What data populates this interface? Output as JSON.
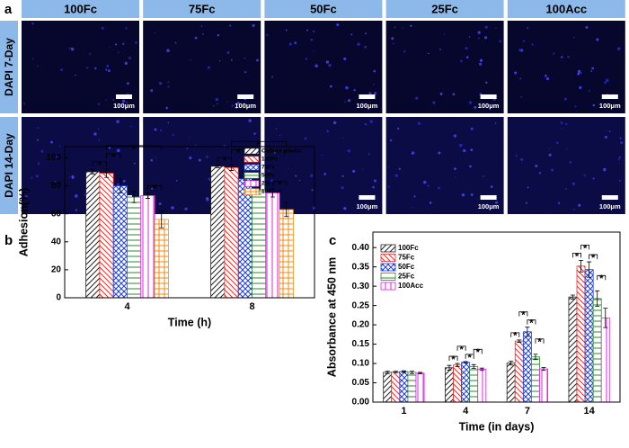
{
  "panel_a": {
    "label": "a",
    "columns": [
      "100Fc",
      "75Fc",
      "50Fc",
      "25Fc",
      "100Acc"
    ],
    "rows": [
      "DAPI 7-Day",
      "DAPI 14-Day"
    ],
    "scale_bar": "100μm"
  },
  "chart_data": [
    {
      "type": "bar",
      "label": "b",
      "ylabel": "Adhesion(%)",
      "xlabel": "Time (h)",
      "categories": [
        "4",
        "8"
      ],
      "series": [
        {
          "name": "Culture plastic",
          "color": "#222222",
          "values": [
            90,
            94
          ],
          "errors": [
            1.5,
            1
          ]
        },
        {
          "name": "100Fc",
          "color": "#e8302a",
          "values": [
            89,
            93
          ],
          "errors": [
            3,
            2
          ]
        },
        {
          "name": "75Fc",
          "color": "#1f3fd6",
          "values": [
            80,
            85
          ],
          "errors": [
            5,
            1
          ]
        },
        {
          "name": "50Fc",
          "color": "#2a8a2a",
          "values": [
            72,
            77
          ],
          "errors": [
            4,
            3
          ]
        },
        {
          "name": "25Fc",
          "color": "#e020e0",
          "values": [
            73,
            75
          ],
          "errors": [
            2,
            3
          ]
        },
        {
          "name": "100Acc",
          "color": "#f08a10",
          "values": [
            56,
            63
          ],
          "errors": [
            6,
            5
          ]
        }
      ],
      "ylim": [
        0,
        108
      ],
      "yticks": [
        0,
        20,
        40,
        60,
        80,
        100
      ],
      "legend": "upper right",
      "significance": "*"
    },
    {
      "type": "bar",
      "label": "c",
      "ylabel": "Absorbance at 450 nm",
      "xlabel": "Time (in days)",
      "categories": [
        "1",
        "4",
        "7",
        "14"
      ],
      "series": [
        {
          "name": "100Fc",
          "color": "#222222",
          "values": [
            0.077,
            0.089,
            0.101,
            0.272
          ],
          "errors": [
            0.003,
            0.006,
            0.005,
            0.005
          ]
        },
        {
          "name": "75Fc",
          "color": "#e8302a",
          "values": [
            0.078,
            0.096,
            0.158,
            0.352
          ],
          "errors": [
            0.002,
            0.004,
            0.003,
            0.015
          ]
        },
        {
          "name": "50Fc",
          "color": "#1f3fd6",
          "values": [
            0.079,
            0.103,
            0.182,
            0.343
          ],
          "errors": [
            0.002,
            0.002,
            0.012,
            0.02
          ]
        },
        {
          "name": "25Fc",
          "color": "#2a8a2a",
          "values": [
            0.077,
            0.092,
            0.117,
            0.268
          ],
          "errors": [
            0.003,
            0.005,
            0.007,
            0.02
          ]
        },
        {
          "name": "100Acc",
          "color": "#e020e0",
          "values": [
            0.075,
            0.085,
            0.086,
            0.218
          ],
          "errors": [
            0.002,
            0.003,
            0.004,
            0.025
          ]
        }
      ],
      "ylim": [
        0,
        0.44
      ],
      "yticks": [
        {
          "value": 0,
          "label": "0.00"
        },
        {
          "value": 0.05,
          "label": "0.05"
        },
        {
          "value": 0.1,
          "label": "0.10"
        },
        {
          "value": 0.15,
          "label": "0.15"
        },
        {
          "value": 0.2,
          "label": "0.20"
        },
        {
          "value": 0.25,
          "label": "0.25"
        },
        {
          "value": 0.3,
          "label": "0.30"
        },
        {
          "value": 0.35,
          "label": "0.35"
        },
        {
          "value": 0.4,
          "label": "0.40"
        }
      ],
      "legend": "upper left",
      "significance": "*"
    }
  ]
}
